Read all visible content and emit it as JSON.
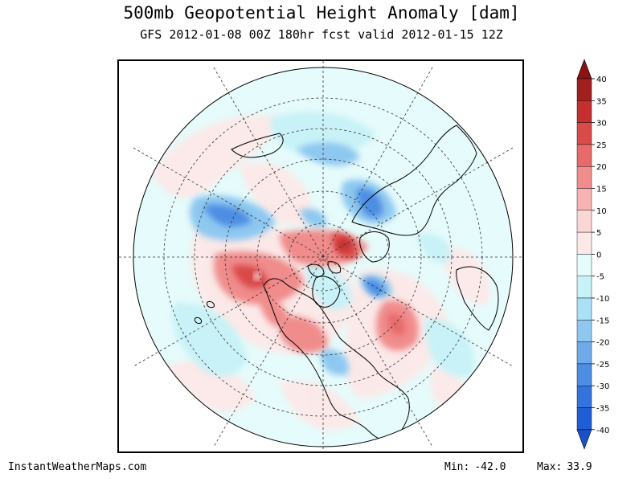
{
  "title": "500mb Geopotential Height Anomaly [dam]",
  "subtitle": "GFS 2012-01-08 00Z 180hr fcst valid 2012-01-15 12Z",
  "footer": {
    "credit": "InstantWeatherMaps.com",
    "min_label": "Min:",
    "min_value": "-42.0",
    "max_label": "Max:",
    "max_value": "33.9"
  },
  "colorbar": {
    "ticks": [
      "40",
      "35",
      "30",
      "25",
      "20",
      "15",
      "10",
      "5",
      "0",
      "-5",
      "-10",
      "-15",
      "-20",
      "-25",
      "-30",
      "-35",
      "-40"
    ],
    "colors": {
      "35_40": "#a01f1f",
      "30_35": "#c43030",
      "25_30": "#d94a4a",
      "20_25": "#e86a6a",
      "15_20": "#f08c8c",
      "10_15": "#f7b3b3",
      "5_10": "#fbd6d6",
      "0_5": "#fde8e8",
      "m5_0": "#e6fbfb",
      "m10_m5": "#c8f2f7",
      "m15_m10": "#a9e1f5",
      "m20_m15": "#8ec8f0",
      "m25_m20": "#6eaaea",
      "m30_m25": "#4e8de4",
      "m35_m30": "#3473dc",
      "m40_m35": "#1f5ed4",
      "over": "#8a1212",
      "under": "#1a50c8"
    }
  },
  "map": {
    "projection": "north polar stereographic",
    "background_color": "#e6fbfb",
    "outside_color": "#ffffff"
  }
}
